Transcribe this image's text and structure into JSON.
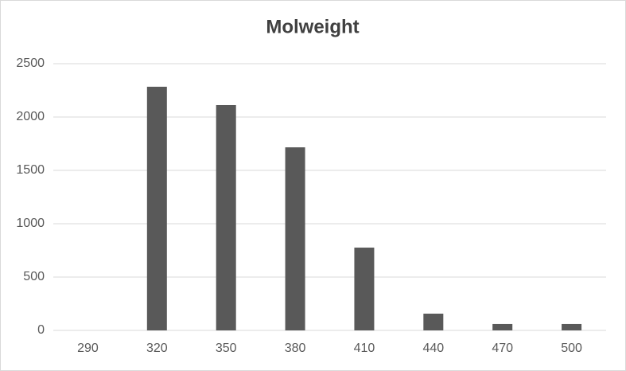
{
  "chart_data": {
    "type": "bar",
    "title": "Molweight",
    "categories": [
      "290",
      "320",
      "350",
      "380",
      "410",
      "440",
      "470",
      "500"
    ],
    "values": [
      0,
      2284,
      2112,
      1716,
      776,
      157,
      60,
      60
    ],
    "color": "#595959",
    "ylim": [
      0,
      2500
    ],
    "yticks": [
      0,
      500,
      1000,
      1500,
      2000,
      2500
    ],
    "grid": true
  }
}
